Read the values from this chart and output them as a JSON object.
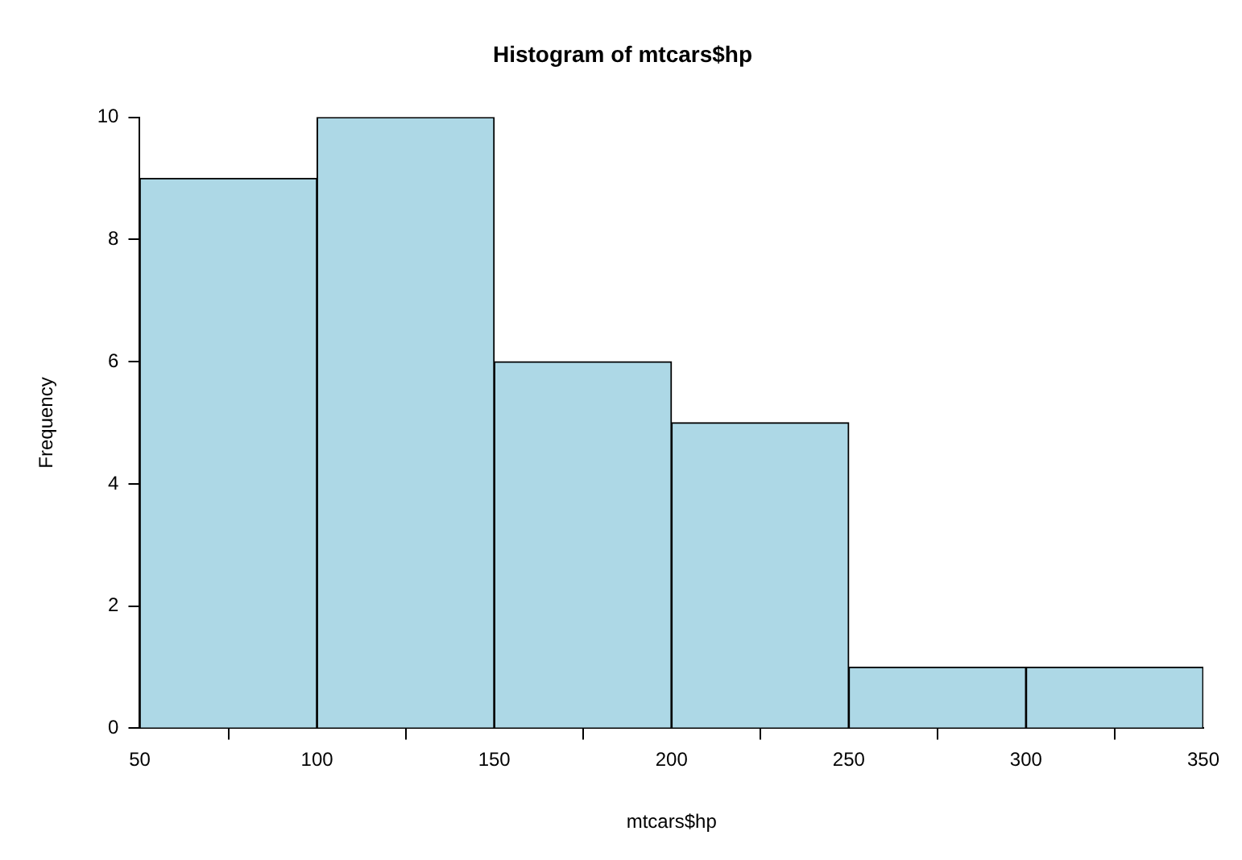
{
  "chart_data": {
    "type": "histogram",
    "title": "Histogram of mtcars$hp",
    "xlabel": "mtcars$hp",
    "ylabel": "Frequency",
    "bins": [
      50,
      100,
      150,
      200,
      250,
      300,
      350
    ],
    "values": [
      9,
      10,
      6,
      5,
      1,
      1
    ],
    "color": "#add8e6",
    "xlim": [
      50,
      350
    ],
    "xticks": [
      50,
      100,
      150,
      200,
      250,
      300,
      350
    ],
    "ylim": [
      0,
      10
    ],
    "yticks": [
      0,
      2,
      4,
      6,
      8,
      10
    ],
    "grid": false,
    "legend": false
  }
}
